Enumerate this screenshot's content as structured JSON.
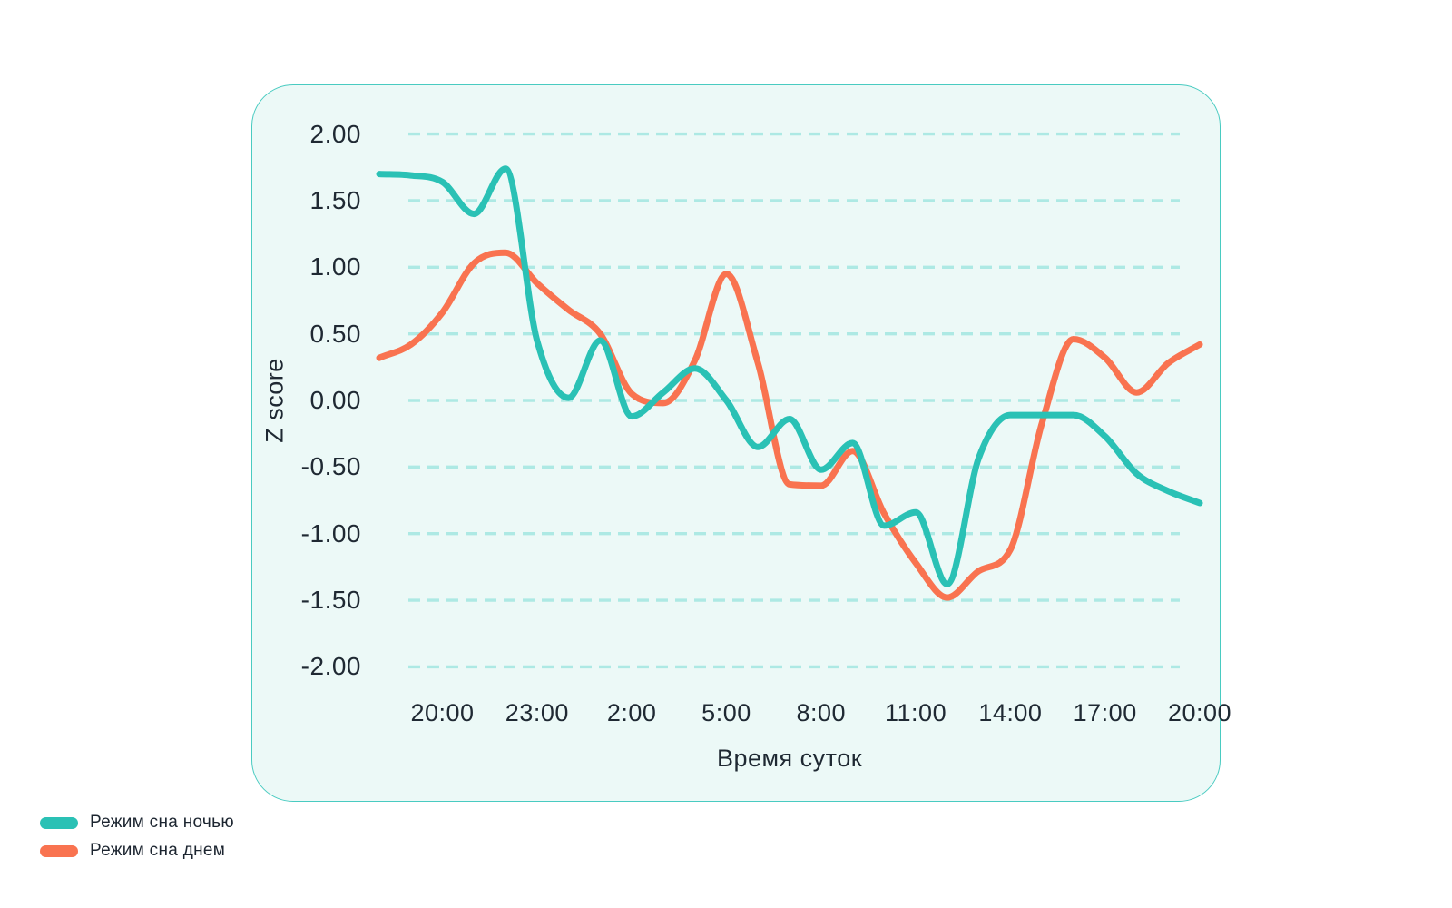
{
  "page": {
    "background": "#ffffff"
  },
  "panel": {
    "background": "#ECF9F7",
    "border_color": "#49CBC1",
    "grid_color": "#ADE9E4"
  },
  "chart_data": {
    "type": "line",
    "xlabel": "Время суток",
    "ylabel": "Z score",
    "x_times": [
      "18:00",
      "19:00",
      "20:00",
      "21:00",
      "22:00",
      "23:00",
      "0:00",
      "1:00",
      "2:00",
      "3:00",
      "4:00",
      "5:00",
      "6:00",
      "7:00",
      "8:00",
      "9:00",
      "10:00",
      "11:00",
      "12:00",
      "13:00",
      "14:00",
      "15:00",
      "16:00",
      "17:00",
      "18:00",
      "19:00",
      "20:00"
    ],
    "x_tick_indices": [
      2,
      5,
      8,
      11,
      14,
      17,
      20,
      23,
      26
    ],
    "x_tick_labels": [
      "20:00",
      "23:00",
      "2:00",
      "5:00",
      "8:00",
      "11:00",
      "14:00",
      "17:00",
      "20:00"
    ],
    "y_ticks": [
      2,
      1.5,
      1,
      0.5,
      0,
      -0.5,
      -1,
      -1.5,
      -2
    ],
    "y_tick_labels": [
      "2.00",
      "1.50",
      "1.00",
      "0.50",
      "0.00",
      "-0.50",
      "-1.00",
      "-1.50",
      "-2.00"
    ],
    "ylim": [
      -2,
      2
    ],
    "grid": {
      "horizontal": true,
      "vertical": false,
      "style": "dashed"
    },
    "legend_position": "bottom-left",
    "series": [
      {
        "name": "Режим сна ночью",
        "color": "#2AC1B5",
        "values": [
          1.7,
          1.69,
          1.64,
          1.4,
          1.74,
          0.45,
          0.02,
          0.45,
          -0.12,
          0.06,
          0.24,
          0.0,
          -0.35,
          -0.14,
          -0.52,
          -0.32,
          -0.94,
          -0.84,
          -1.38,
          -0.43,
          -0.11,
          -0.11,
          -0.11,
          -0.27,
          -0.55,
          -0.68,
          -0.77
        ]
      },
      {
        "name": "Режим сна днем",
        "color": "#F97350",
        "values": [
          0.32,
          0.42,
          0.66,
          1.03,
          1.11,
          0.88,
          0.68,
          0.5,
          0.05,
          -0.02,
          0.3,
          0.95,
          0.28,
          -0.63,
          -0.64,
          -0.38,
          -0.85,
          -1.22,
          -1.48,
          -1.28,
          -1.12,
          -0.17,
          0.46,
          0.32,
          0.06,
          0.28,
          0.42
        ]
      }
    ]
  }
}
